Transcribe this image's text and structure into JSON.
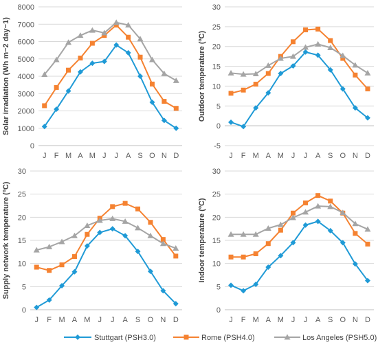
{
  "legend": [
    {
      "label": "Stuttgart (PSH3.0)",
      "color": "#1f9ad6",
      "marker": "diamond"
    },
    {
      "label": "Rome (PSH4.0)",
      "color": "#f58231",
      "marker": "square"
    },
    {
      "label": "Los Angeles (PSH5.0)",
      "color": "#a5a5a5",
      "marker": "triangle"
    }
  ],
  "chart_data": [
    {
      "type": "line",
      "categories": [
        "J",
        "F",
        "M",
        "A",
        "M",
        "J",
        "J",
        "A",
        "S",
        "O",
        "N",
        "D"
      ],
      "ylabel": "Solar irradiation (Wh m−2 day−1)",
      "ylim": [
        0,
        8000
      ],
      "yticks": [
        0,
        1000,
        2000,
        3000,
        4000,
        5000,
        6000,
        7000,
        8000
      ],
      "grid": true,
      "series": [
        {
          "name": "Stuttgart (PSH3.0)",
          "values": [
            1100,
            2100,
            3150,
            4250,
            4750,
            4850,
            5800,
            5350,
            4000,
            2500,
            1450,
            1000
          ]
        },
        {
          "name": "Rome (PSH4.0)",
          "values": [
            2300,
            3350,
            4350,
            5050,
            5900,
            6350,
            6950,
            6250,
            5100,
            3550,
            2550,
            2150
          ]
        },
        {
          "name": "Los Angeles (PSH5.0)",
          "values": [
            4100,
            4950,
            5950,
            6350,
            6650,
            6500,
            7100,
            6950,
            6150,
            4950,
            4150,
            3750
          ]
        }
      ]
    },
    {
      "type": "line",
      "categories": [
        "J",
        "F",
        "M",
        "A",
        "M",
        "J",
        "J",
        "A",
        "S",
        "O",
        "N",
        "D"
      ],
      "ylabel": "Outdoor temperature (ºC)",
      "ylim": [
        -5,
        30
      ],
      "yticks": [
        -5,
        0,
        5,
        10,
        15,
        20,
        25,
        30
      ],
      "grid": true,
      "series": [
        {
          "name": "Stuttgart (PSH3.0)",
          "values": [
            0.9,
            -0.2,
            4.5,
            8.3,
            13.2,
            15.1,
            18.6,
            17.8,
            14.1,
            9.3,
            4.5,
            2.0
          ]
        },
        {
          "name": "Rome (PSH4.0)",
          "values": [
            8.2,
            9.0,
            10.5,
            13.2,
            17.5,
            21.2,
            24.2,
            24.4,
            21.5,
            17.0,
            12.8,
            9.3
          ]
        },
        {
          "name": "Los Angeles (PSH5.0)",
          "values": [
            13.3,
            13.0,
            13.1,
            15.2,
            17.0,
            17.5,
            19.8,
            20.6,
            19.7,
            17.7,
            15.3,
            13.3
          ]
        }
      ]
    },
    {
      "type": "line",
      "categories": [
        "J",
        "F",
        "M",
        "A",
        "M",
        "J",
        "J",
        "A",
        "S",
        "O",
        "N",
        "D"
      ],
      "ylabel": "Supply network temperature (ºC)",
      "ylim": [
        0,
        30
      ],
      "yticks": [
        0,
        5,
        10,
        15,
        20,
        25,
        30
      ],
      "grid": true,
      "series": [
        {
          "name": "Stuttgart (PSH3.0)",
          "values": [
            0.5,
            2.1,
            5.2,
            8.2,
            13.8,
            16.7,
            17.5,
            16.0,
            12.6,
            8.3,
            4.1,
            1.3
          ]
        },
        {
          "name": "Rome (PSH4.0)",
          "values": [
            9.2,
            8.5,
            9.7,
            11.5,
            16.3,
            19.8,
            22.3,
            23.0,
            21.8,
            18.9,
            15.2,
            11.6
          ]
        },
        {
          "name": "Los Angeles (PSH5.0)",
          "values": [
            12.9,
            13.6,
            14.7,
            16.0,
            18.2,
            19.3,
            19.7,
            19.1,
            17.7,
            16.0,
            14.3,
            13.3
          ]
        }
      ]
    },
    {
      "type": "line",
      "categories": [
        "J",
        "F",
        "M",
        "A",
        "M",
        "J",
        "J",
        "A",
        "S",
        "O",
        "N",
        "D"
      ],
      "ylabel": "Indoor temperature (ºC)",
      "ylim": [
        0,
        30
      ],
      "yticks": [
        0,
        5,
        10,
        15,
        20,
        25,
        30
      ],
      "grid": true,
      "series": [
        {
          "name": "Stuttgart (PSH3.0)",
          "values": [
            5.3,
            4.1,
            5.5,
            9.2,
            11.7,
            14.5,
            18.3,
            19.1,
            17.1,
            14.5,
            9.9,
            6.3
          ]
        },
        {
          "name": "Rome (PSH4.0)",
          "values": [
            11.4,
            11.4,
            12.1,
            14.3,
            17.2,
            20.9,
            23.1,
            24.7,
            23.5,
            20.9,
            16.5,
            14.2
          ]
        },
        {
          "name": "Los Angeles (PSH5.0)",
          "values": [
            16.3,
            16.3,
            16.3,
            17.6,
            18.4,
            19.9,
            21.1,
            22.4,
            22.3,
            21.0,
            18.6,
            17.4
          ]
        }
      ]
    }
  ]
}
